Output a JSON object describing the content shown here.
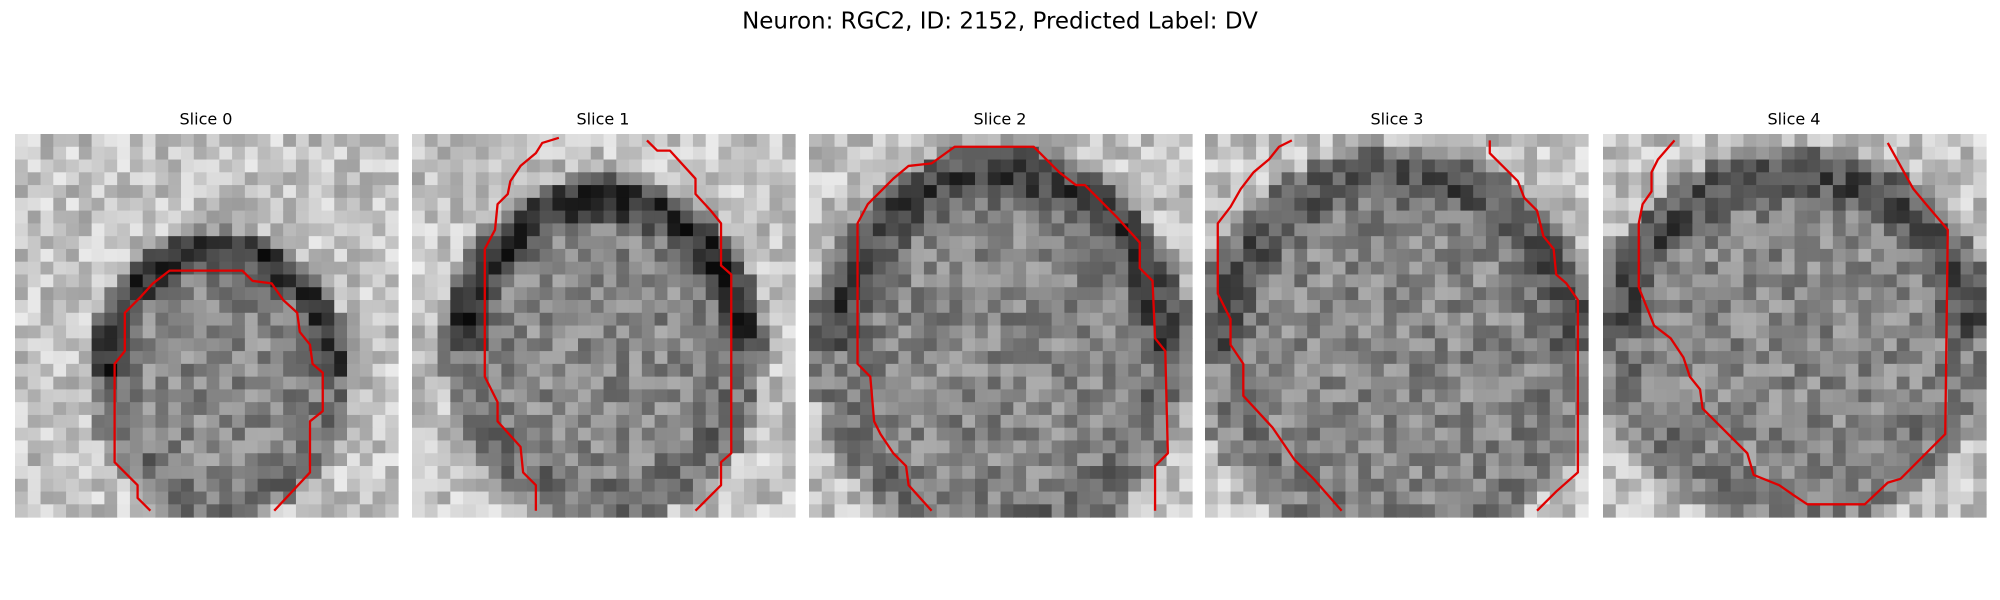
{
  "header": {
    "title": "Neuron: RGC2, ID: 2152, Predicted Label: DV"
  },
  "panels": [
    {
      "title": "Slice 0"
    },
    {
      "title": "Slice 1"
    },
    {
      "title": "Slice 2"
    },
    {
      "title": "Slice 3"
    },
    {
      "title": "Slice 4"
    }
  ]
}
